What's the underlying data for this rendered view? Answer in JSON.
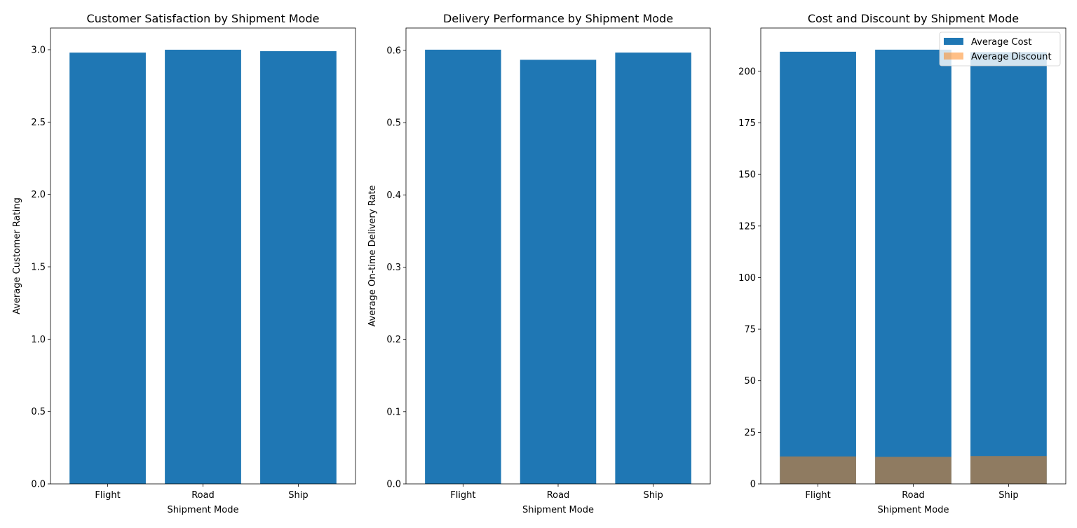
{
  "colors": {
    "primary": "#1f77b4",
    "secondary": "#ff7f0e"
  },
  "chart_data": [
    {
      "type": "bar",
      "title": "Customer Satisfaction by Shipment Mode",
      "xlabel": "Shipment Mode",
      "ylabel": "Average Customer Rating",
      "categories": [
        "Flight",
        "Road",
        "Ship"
      ],
      "series": [
        {
          "values": [
            2.98,
            3.0,
            2.99
          ]
        }
      ],
      "ylim": [
        0,
        3.15
      ],
      "yticks": [
        0.0,
        0.5,
        1.0,
        1.5,
        2.0,
        2.5,
        3.0
      ],
      "ytick_labels": [
        "0.0",
        "0.5",
        "1.0",
        "1.5",
        "2.0",
        "2.5",
        "3.0"
      ],
      "grid": false
    },
    {
      "type": "bar",
      "title": "Delivery Performance by Shipment Mode",
      "xlabel": "Shipment Mode",
      "ylabel": "Average On-time Delivery Rate",
      "categories": [
        "Flight",
        "Road",
        "Ship"
      ],
      "series": [
        {
          "values": [
            0.601,
            0.587,
            0.597
          ]
        }
      ],
      "ylim": [
        0,
        0.631
      ],
      "yticks": [
        0.0,
        0.1,
        0.2,
        0.3,
        0.4,
        0.5,
        0.6
      ],
      "ytick_labels": [
        "0.0",
        "0.1",
        "0.2",
        "0.3",
        "0.4",
        "0.5",
        "0.6"
      ],
      "grid": false
    },
    {
      "type": "bar",
      "title": "Cost and Discount by Shipment Mode",
      "xlabel": "Shipment Mode",
      "ylabel": "",
      "categories": [
        "Flight",
        "Road",
        "Ship"
      ],
      "series": [
        {
          "name": "Average Cost",
          "values": [
            209.5,
            210.5,
            209.3
          ],
          "opacity": 1.0
        },
        {
          "name": "Average Discount",
          "values": [
            13.3,
            13.1,
            13.5
          ],
          "opacity": 0.5
        }
      ],
      "ylim": [
        0,
        221
      ],
      "yticks": [
        0,
        25,
        50,
        75,
        100,
        125,
        150,
        175,
        200
      ],
      "ytick_labels": [
        "0",
        "25",
        "50",
        "75",
        "100",
        "125",
        "150",
        "175",
        "200"
      ],
      "legend": "top-right",
      "grid": false
    }
  ]
}
